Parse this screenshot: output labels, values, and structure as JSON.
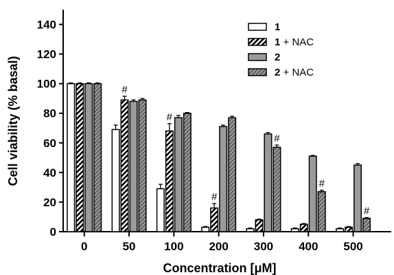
{
  "chart_data": {
    "type": "bar",
    "xlabel": "Concentration [μM]",
    "ylabel": "Cell viability (% basal)",
    "ylim": [
      0,
      150
    ],
    "yticks": [
      0,
      20,
      40,
      60,
      80,
      100,
      120,
      140
    ],
    "categories": [
      "0",
      "50",
      "100",
      "200",
      "300",
      "400",
      "500"
    ],
    "legend_position": "top-right",
    "series": [
      {
        "name_bold": "1",
        "name_suffix": "",
        "pattern": "open",
        "values": [
          100,
          69,
          29,
          3,
          2,
          2,
          2
        ],
        "errors": [
          0.5,
          3,
          3,
          0.5,
          0.5,
          0.5,
          0.5
        ],
        "annotations": [
          "",
          "",
          "",
          "",
          "",
          "",
          ""
        ]
      },
      {
        "name_bold": "1",
        "name_suffix": " + NAC",
        "pattern": "hatched",
        "values": [
          100,
          89,
          68,
          16,
          8,
          5,
          3
        ],
        "errors": [
          0.5,
          2.5,
          5,
          3,
          0.5,
          0.5,
          0.5
        ],
        "annotations": [
          "",
          "#",
          "#",
          "#",
          "",
          "",
          ""
        ]
      },
      {
        "name_bold": "2",
        "name_suffix": "",
        "pattern": "gray",
        "values": [
          100,
          88,
          77,
          71,
          66,
          51,
          45
        ],
        "errors": [
          0.5,
          1,
          1.5,
          1,
          1,
          0.5,
          1
        ],
        "annotations": [
          "",
          "",
          "",
          "",
          "",
          "",
          ""
        ]
      },
      {
        "name_bold": "2",
        "name_suffix": " + NAC",
        "pattern": "gray-hatched",
        "values": [
          100,
          89,
          80,
          77,
          57,
          27,
          9
        ],
        "errors": [
          0.5,
          1,
          0.5,
          1,
          1.5,
          1,
          0.5
        ],
        "annotations": [
          "",
          "",
          "",
          "",
          "#",
          "#",
          "#"
        ]
      }
    ]
  }
}
